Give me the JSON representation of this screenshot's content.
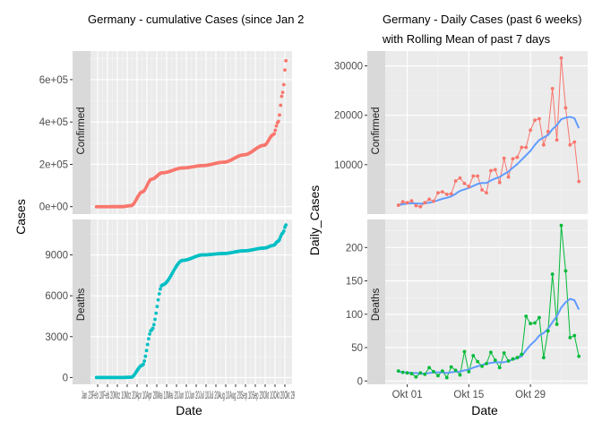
{
  "chart_data": [
    {
      "type": "line",
      "title": "Germany - cumulative Cases (since Jan 2",
      "xlabel": "Date",
      "ylabel": "Cases",
      "x_tick_labels": [
        "Jan 23",
        "Feb 10",
        "Feb 20",
        "Mrz 10",
        "Mrz 20",
        "Apr 10",
        "Apr 20",
        "Mai 10",
        "Mai 20",
        "Jun 10",
        "Jun 20",
        "Jul 10",
        "Jul 20",
        "Aug 10",
        "Aug 20",
        "Sep 10",
        "Sep 20",
        "Okt 10",
        "Okt 20",
        "Okt 29"
      ],
      "x_tick_label_text": [
        "Jan 23Feb 10Feb 20Mrz 10Mrz 20Apr 10Apr 20Mai 10Mai 20Jun 10Jun 20Jul 10Jul 20Aug 10Aug 20Sep 10Sep 20Okt 10Okt 20Okt 29"
      ],
      "panels": [
        {
          "strip": "Confirmed",
          "color": "#F8766D",
          "y_ticks": [
            "0e+00",
            "2e+05",
            "4e+05",
            "6e+05"
          ],
          "y_tick_values": [
            0,
            200000,
            400000,
            600000
          ],
          "ylim": [
            -35000,
            735000
          ],
          "x_dates": [
            "Jan 23",
            "Mar 1",
            "Mar 15",
            "Apr 1",
            "Apr 15",
            "May 1",
            "Jun 1",
            "Jul 1",
            "Aug 1",
            "Sep 1",
            "Oct 1",
            "Oct 15",
            "Oct 22",
            "Oct 29",
            "Nov 3"
          ],
          "values": [
            0,
            100,
            5000,
            70000,
            130000,
            160000,
            183000,
            194000,
            210000,
            245000,
            290000,
            340000,
            400000,
            540000,
            690000
          ]
        },
        {
          "strip": "Deaths",
          "color": "#00BFC4",
          "y_ticks": [
            "0",
            "3000",
            "6000",
            "9000"
          ],
          "y_tick_values": [
            0,
            3000,
            6000,
            9000
          ],
          "ylim": [
            -500,
            11600
          ],
          "x_dates": [
            "Jan 23",
            "Mar 1",
            "Mar 15",
            "Apr 1",
            "Apr 15",
            "May 1",
            "Jun 1",
            "Jul 1",
            "Aug 1",
            "Sep 1",
            "Oct 1",
            "Oct 15",
            "Oct 22",
            "Oct 29",
            "Nov 3"
          ],
          "values": [
            0,
            0,
            20,
            900,
            3500,
            6800,
            8600,
            9000,
            9100,
            9300,
            9500,
            9700,
            10000,
            10600,
            11200
          ]
        }
      ]
    },
    {
      "type": "line",
      "title": "Germany - Daily Cases (past 6 weeks)",
      "subtitle": "with Rolling Mean of past 7 days",
      "xlabel": "Date",
      "ylabel": "Daily_Cases",
      "x_tick_labels": [
        "Okt 01",
        "Okt 15",
        "Okt 29"
      ],
      "x_tick_days": [
        0,
        14,
        28
      ],
      "rolling_mean_color": "#619CFF",
      "panels": [
        {
          "strip": "Confirmed",
          "color": "#F8766D",
          "y_ticks": [
            "10000",
            "20000",
            "30000"
          ],
          "y_tick_values": [
            10000,
            20000,
            30000
          ],
          "ylim": [
            0,
            33000
          ],
          "x_days": [
            -2,
            -1,
            0,
            1,
            2,
            3,
            4,
            5,
            6,
            7,
            8,
            9,
            10,
            11,
            12,
            13,
            14,
            15,
            16,
            17,
            18,
            19,
            20,
            21,
            22,
            23,
            24,
            25,
            26,
            27,
            28,
            29,
            30,
            31,
            32,
            33,
            34,
            35,
            36,
            37,
            38,
            39
          ],
          "values": [
            1800,
            2500,
            2300,
            2700,
            1700,
            1500,
            2300,
            3000,
            2600,
            4300,
            4500,
            4000,
            4100,
            6700,
            7300,
            6200,
            5600,
            7700,
            7700,
            4900,
            4300,
            8800,
            9000,
            6400,
            11300,
            7500,
            11200,
            11500,
            13500,
            13500,
            17000,
            19000,
            19300,
            14000,
            16700,
            25400,
            15000,
            31600,
            21500,
            14000,
            14600,
            6600
          ],
          "rolling_mean": [
            1800,
            2000,
            2100,
            2200,
            2150,
            2100,
            2200,
            2300,
            2500,
            2800,
            3100,
            3300,
            3600,
            4100,
            4700,
            5000,
            5300,
            5700,
            6100,
            6300,
            6300,
            6800,
            7200,
            7500,
            8100,
            8600,
            9400,
            10100,
            11000,
            11900,
            12800,
            14000,
            15000,
            15500,
            16000,
            17200,
            18000,
            19200,
            19500,
            19700,
            19400,
            17400
          ]
        },
        {
          "strip": "Deaths",
          "color": "#00BA38",
          "y_ticks": [
            "0",
            "50",
            "100",
            "150",
            "200"
          ],
          "y_tick_values": [
            0,
            50,
            100,
            150,
            200
          ],
          "ylim": [
            -5,
            242
          ],
          "x_days": [
            -2,
            -1,
            0,
            1,
            2,
            3,
            4,
            5,
            6,
            7,
            8,
            9,
            10,
            11,
            12,
            13,
            14,
            15,
            16,
            17,
            18,
            19,
            20,
            21,
            22,
            23,
            24,
            25,
            26,
            27,
            28,
            29,
            30,
            31,
            32,
            33,
            34,
            35,
            36,
            37,
            38,
            39
          ],
          "values": [
            15,
            13,
            12,
            11,
            6,
            12,
            10,
            20,
            14,
            8,
            15,
            5,
            21,
            16,
            9,
            44,
            14,
            38,
            29,
            22,
            26,
            43,
            31,
            20,
            42,
            30,
            33,
            35,
            40,
            97,
            86,
            87,
            95,
            35,
            75,
            160,
            85,
            233,
            165,
            65,
            68,
            37
          ],
          "rolling_mean": [
            14,
            13,
            13,
            12,
            12,
            11,
            11,
            12,
            13,
            13,
            13,
            12,
            13,
            14,
            14,
            16,
            17,
            20,
            22,
            24,
            26,
            27,
            28,
            28,
            28,
            30,
            32,
            34,
            37,
            46,
            54,
            60,
            68,
            72,
            78,
            88,
            97,
            110,
            118,
            123,
            121,
            107
          ]
        }
      ]
    }
  ]
}
